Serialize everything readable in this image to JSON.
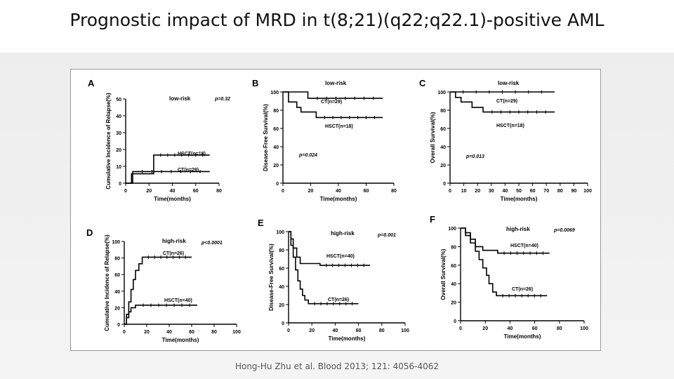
{
  "title": "Prognostic impact of MRD in t(8;21)(q22;q22.1)-positive AML",
  "citation": "Hong-Hu Zhu et al. Blood 2013; 121: 4056-4062",
  "colors": {
    "line": "#000000",
    "text": "#000000"
  },
  "chart_data": [
    {
      "panel": "A",
      "type": "line",
      "group": "low-risk",
      "ylabel": "Cumulative Incidence of Relapse(%)",
      "xlabel": "Time(months)",
      "xlim": [
        0,
        80
      ],
      "ylim": [
        0,
        50
      ],
      "xticks": [
        "0",
        "20",
        "40",
        "60",
        "80"
      ],
      "yticks": [
        "0",
        "10",
        "20",
        "30",
        "40",
        "50"
      ],
      "pvalue": "p=0.32",
      "series": [
        {
          "name": "HSCT(n=18)",
          "points": [
            [
              0,
              0
            ],
            [
              5,
              0
            ],
            [
              5,
              5.6
            ],
            [
              24,
              5.6
            ],
            [
              24,
              16.7
            ],
            [
              72,
              16.7
            ]
          ]
        },
        {
          "name": "CT(n=29)",
          "points": [
            [
              0,
              0
            ],
            [
              6,
              0
            ],
            [
              6,
              6.9
            ],
            [
              72,
              6.9
            ]
          ]
        }
      ]
    },
    {
      "panel": "B",
      "type": "line",
      "group": "low-risk",
      "ylabel": "Disease-Free Survival(%)",
      "xlabel": "Time(months)",
      "xlim": [
        0,
        80
      ],
      "ylim": [
        0,
        100
      ],
      "xticks": [
        "0",
        "20",
        "40",
        "60",
        "80"
      ],
      "yticks": [
        "0",
        "20",
        "40",
        "60",
        "80",
        "100"
      ],
      "pvalue": "p=0.024",
      "series": [
        {
          "name": "CT(n=29)",
          "points": [
            [
              0,
              100
            ],
            [
              18,
              100
            ],
            [
              18,
              93
            ],
            [
              72,
              93
            ]
          ]
        },
        {
          "name": "HSCT(n=18)",
          "points": [
            [
              0,
              100
            ],
            [
              4,
              100
            ],
            [
              4,
              89
            ],
            [
              10,
              89
            ],
            [
              10,
              83
            ],
            [
              13,
              83
            ],
            [
              13,
              78
            ],
            [
              24,
              78
            ],
            [
              24,
              72
            ],
            [
              72,
              72
            ]
          ]
        }
      ]
    },
    {
      "panel": "C",
      "type": "line",
      "group": "low-risk",
      "ylabel": "Overall Survival(%)",
      "xlabel": "Time(months)",
      "xlim": [
        0,
        100
      ],
      "ylim": [
        0,
        100
      ],
      "xticks": [
        "0",
        "10",
        "20",
        "30",
        "40",
        "50",
        "60",
        "70",
        "80",
        "90",
        "100"
      ],
      "yticks": [
        "0",
        "20",
        "40",
        "60",
        "80",
        "100"
      ],
      "pvalue": "p=0.013",
      "series": [
        {
          "name": "CT(n=29)",
          "points": [
            [
              0,
              100
            ],
            [
              76,
              100
            ]
          ]
        },
        {
          "name": "HSCT(n=18)",
          "points": [
            [
              0,
              100
            ],
            [
              4,
              100
            ],
            [
              4,
              94
            ],
            [
              8,
              94
            ],
            [
              8,
              89
            ],
            [
              16,
              89
            ],
            [
              16,
              83
            ],
            [
              24,
              83
            ],
            [
              24,
              78
            ],
            [
              76,
              78
            ]
          ]
        }
      ]
    },
    {
      "panel": "D",
      "type": "line",
      "group": "high-risk",
      "ylabel": "Cumulative Incidence of Relapse(%)",
      "xlabel": "Time(months)",
      "xlim": [
        0,
        100
      ],
      "ylim": [
        0,
        100
      ],
      "xticks": [
        "0",
        "20",
        "40",
        "60",
        "80",
        "100"
      ],
      "yticks": [
        "0",
        "20",
        "40",
        "60",
        "80",
        "100"
      ],
      "pvalue": "p<0.0001",
      "series": [
        {
          "name": "CT(n=26)",
          "points": [
            [
              0,
              0
            ],
            [
              2,
              0
            ],
            [
              2,
              12
            ],
            [
              4,
              12
            ],
            [
              4,
              27
            ],
            [
              6,
              27
            ],
            [
              6,
              42
            ],
            [
              8,
              42
            ],
            [
              8,
              54
            ],
            [
              10,
              54
            ],
            [
              10,
              65
            ],
            [
              13,
              65
            ],
            [
              13,
              73
            ],
            [
              16,
              73
            ],
            [
              16,
              81
            ],
            [
              60,
              81
            ]
          ]
        },
        {
          "name": "HSCT(n=40)",
          "points": [
            [
              0,
              0
            ],
            [
              2,
              0
            ],
            [
              2,
              8
            ],
            [
              4,
              8
            ],
            [
              4,
              15
            ],
            [
              6,
              15
            ],
            [
              6,
              20
            ],
            [
              10,
              20
            ],
            [
              10,
              23
            ],
            [
              65,
              23
            ]
          ]
        }
      ]
    },
    {
      "panel": "E",
      "type": "line",
      "group": "high-risk",
      "ylabel": "Disease-Free Survival(%)",
      "xlabel": "Time(months)",
      "xlim": [
        0,
        100
      ],
      "ylim": [
        0,
        100
      ],
      "xticks": [
        "0",
        "20",
        "40",
        "60",
        "80",
        "100"
      ],
      "yticks": [
        "0",
        "20",
        "40",
        "60",
        "80",
        "100"
      ],
      "pvalue": "p=0.001",
      "series": [
        {
          "name": "HSCT(n=40)",
          "points": [
            [
              0,
              100
            ],
            [
              2,
              100
            ],
            [
              2,
              92
            ],
            [
              4,
              92
            ],
            [
              4,
              82
            ],
            [
              7,
              82
            ],
            [
              7,
              72
            ],
            [
              10,
              72
            ],
            [
              10,
              65
            ],
            [
              27,
              65
            ],
            [
              27,
              63
            ],
            [
              70,
              63
            ]
          ]
        },
        {
          "name": "CT(n=26)",
          "points": [
            [
              0,
              100
            ],
            [
              2,
              100
            ],
            [
              2,
              85
            ],
            [
              4,
              85
            ],
            [
              4,
              72
            ],
            [
              6,
              72
            ],
            [
              6,
              58
            ],
            [
              8,
              58
            ],
            [
              8,
              46
            ],
            [
              10,
              46
            ],
            [
              10,
              37
            ],
            [
              12,
              37
            ],
            [
              12,
              30
            ],
            [
              14,
              30
            ],
            [
              14,
              25
            ],
            [
              17,
              25
            ],
            [
              17,
              21
            ],
            [
              60,
              21
            ]
          ]
        }
      ]
    },
    {
      "panel": "F",
      "type": "line",
      "group": "high-risk",
      "ylabel": "Overall Survival(%)",
      "xlabel": "Time(months)",
      "xlim": [
        0,
        100
      ],
      "ylim": [
        0,
        100
      ],
      "xticks": [
        "0",
        "20",
        "40",
        "60",
        "80",
        "100"
      ],
      "yticks": [
        "0",
        "20",
        "40",
        "60",
        "80",
        "100"
      ],
      "pvalue": "p=0.0069",
      "series": [
        {
          "name": "HSCT(n=40)",
          "points": [
            [
              0,
              100
            ],
            [
              4,
              100
            ],
            [
              4,
              95
            ],
            [
              8,
              95
            ],
            [
              8,
              88
            ],
            [
              12,
              88
            ],
            [
              12,
              80
            ],
            [
              18,
              80
            ],
            [
              18,
              76
            ],
            [
              30,
              76
            ],
            [
              30,
              73
            ],
            [
              72,
              73
            ]
          ]
        },
        {
          "name": "CT(n=26)",
          "points": [
            [
              0,
              100
            ],
            [
              4,
              100
            ],
            [
              4,
              92
            ],
            [
              8,
              92
            ],
            [
              8,
              84
            ],
            [
              12,
              84
            ],
            [
              12,
              75
            ],
            [
              15,
              75
            ],
            [
              15,
              66
            ],
            [
              18,
              66
            ],
            [
              18,
              57
            ],
            [
              21,
              57
            ],
            [
              21,
              49
            ],
            [
              23,
              49
            ],
            [
              23,
              40
            ],
            [
              26,
              40
            ],
            [
              26,
              31
            ],
            [
              29,
              31
            ],
            [
              29,
              27
            ],
            [
              70,
              27
            ]
          ]
        }
      ]
    }
  ]
}
